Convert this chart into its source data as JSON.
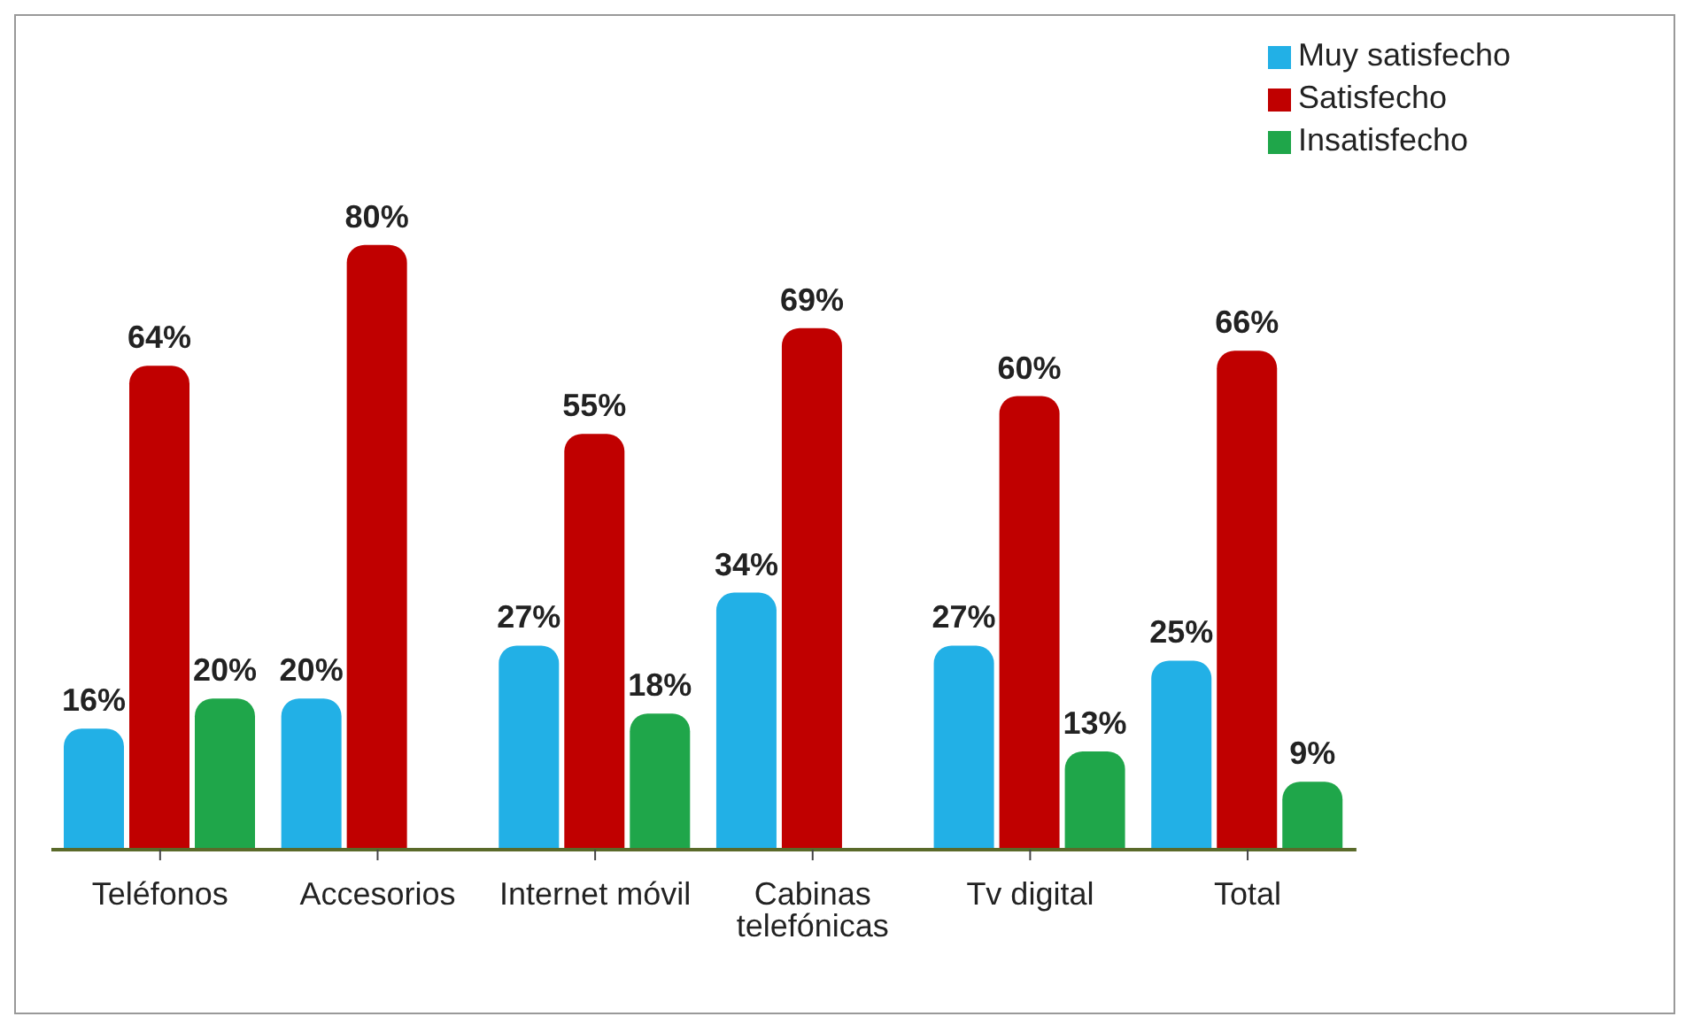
{
  "chart_data": {
    "type": "bar",
    "categories": [
      "Teléfonos",
      "Accesorios",
      "Internet móvil",
      "Cabinas telefónicas",
      "Tv digital",
      "Total"
    ],
    "series": [
      {
        "name": "Muy satisfecho",
        "color": "#22b0e6",
        "values": [
          16,
          20,
          27,
          34,
          27,
          25
        ],
        "value_labels": [
          "16%",
          "20%",
          "27%",
          "34%",
          "27%",
          "25%"
        ]
      },
      {
        "name": "Satisfecho",
        "color": "#c00000",
        "values": [
          64,
          80,
          55,
          69,
          60,
          66
        ],
        "value_labels": [
          "64%",
          "80%",
          "55%",
          "69%",
          "60%",
          "66%"
        ]
      },
      {
        "name": "Insatisfecho",
        "color": "#1fa64a",
        "values": [
          20,
          0,
          18,
          0,
          13,
          9
        ],
        "value_labels": [
          "20%",
          null,
          "18%",
          null,
          "13%",
          "9%"
        ]
      }
    ],
    "legend": "top right"
  }
}
